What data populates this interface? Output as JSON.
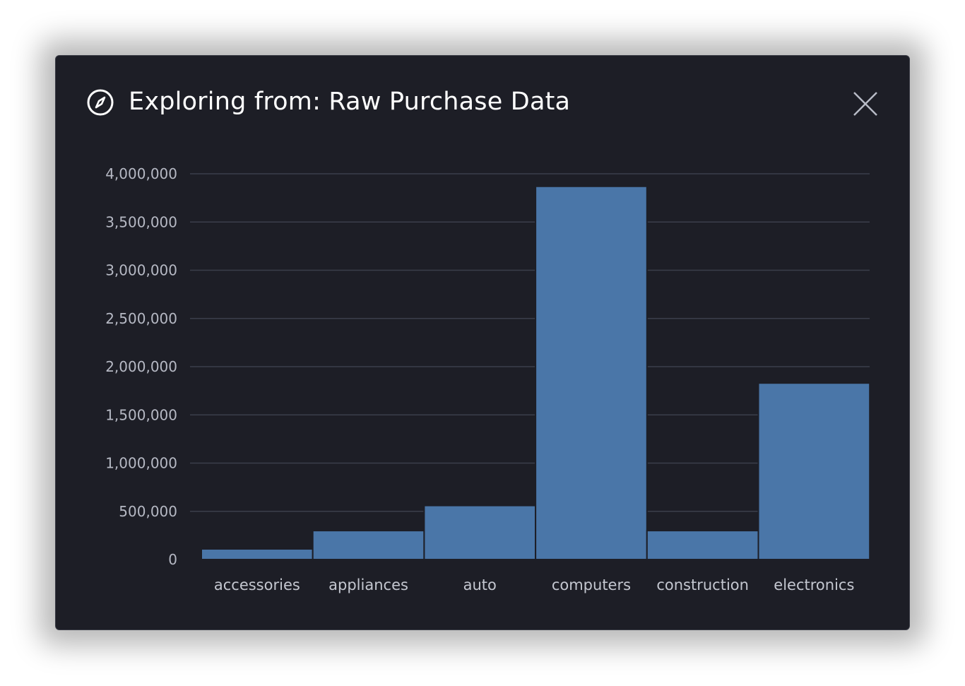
{
  "modal": {
    "title": "Exploring from: Raw Purchase Data",
    "icon": "compass-icon",
    "close_icon": "close-icon"
  },
  "colors": {
    "background": "#1d1e26",
    "bar": "#4a76a8",
    "bar_stroke": "#1d1e26",
    "grid": "#3b3e4b",
    "text": "#ffffff"
  },
  "chart_data": {
    "type": "bar",
    "categories": [
      "accessories",
      "appliances",
      "auto",
      "computers",
      "construction",
      "electronics"
    ],
    "values": [
      110000,
      300000,
      560000,
      3870000,
      300000,
      1830000
    ],
    "ylim": [
      0,
      4000000
    ],
    "yticks": [
      0,
      500000,
      1000000,
      1500000,
      2000000,
      2500000,
      3000000,
      3500000,
      4000000
    ],
    "ytick_labels": [
      "0",
      "500,000",
      "1,000,000",
      "1,500,000",
      "2,000,000",
      "2,500,000",
      "3,000,000",
      "3,500,000",
      "4,000,000"
    ],
    "grid": true,
    "legend": "none"
  }
}
